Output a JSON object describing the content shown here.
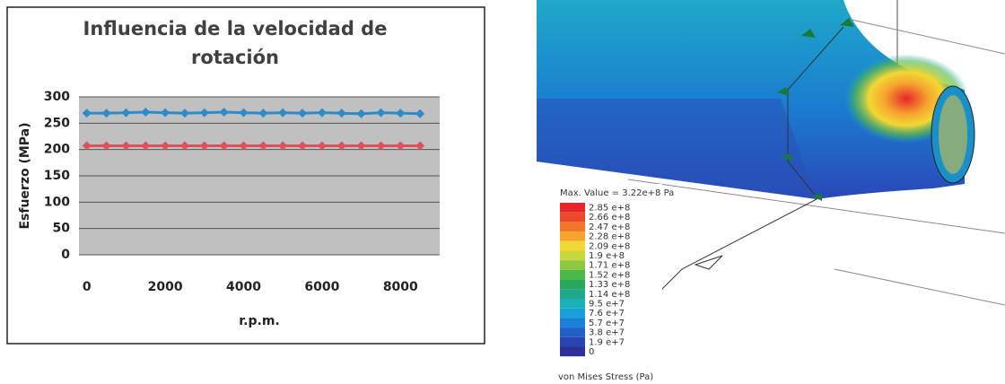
{
  "chart_data": {
    "type": "line",
    "title": "Influencia de la velocidad de rotación",
    "x_label": "r.p.m.",
    "y_label": "Esfuerzo (MPa)",
    "x": [
      0,
      500,
      1000,
      1500,
      2000,
      2500,
      3000,
      3500,
      4000,
      4500,
      5000,
      5500,
      6000,
      6500,
      7000,
      7500,
      8000,
      8500
    ],
    "series": [
      {
        "color": "#2e8bc9",
        "values": [
          269,
          269,
          270,
          271,
          270,
          269,
          270,
          271,
          270,
          269,
          270,
          269,
          270,
          269,
          268,
          270,
          269,
          268
        ]
      },
      {
        "color": "#e0505a",
        "values": [
          207,
          207,
          207,
          207,
          207,
          207,
          207,
          207,
          207,
          207,
          207,
          207,
          207,
          207,
          207,
          207,
          207,
          207
        ]
      }
    ],
    "xlim": [
      -200,
      9000
    ],
    "xticks": [
      0,
      2000,
      4000,
      6000,
      8000
    ],
    "ylim": [
      0,
      300
    ],
    "yticks": [
      0,
      50,
      100,
      150,
      200,
      250,
      300
    ],
    "grid": true
  },
  "fea_image": {
    "max_value": "Max. Value = 3.22e+8 Pa",
    "legend": [
      {
        "label": "2.85 e+8",
        "color": "#e8262a"
      },
      {
        "label": "2.66 e+8",
        "color": "#ee4a2a"
      },
      {
        "label": "2.47 e+8",
        "color": "#f2752c"
      },
      {
        "label": "2.28 e+8",
        "color": "#f5a52e"
      },
      {
        "label": "2.09 e+8",
        "color": "#f2d833"
      },
      {
        "label": "1.9 e+8",
        "color": "#c8d83a"
      },
      {
        "label": "1.71 e+8",
        "color": "#8cc840"
      },
      {
        "label": "1.52 e+8",
        "color": "#4cb848"
      },
      {
        "label": "1.33 e+8",
        "color": "#27a85a"
      },
      {
        "label": "1.14 e+8",
        "color": "#1fa98a"
      },
      {
        "label": "9.5 e+7",
        "color": "#1cb0b8"
      },
      {
        "label": "7.6 e+7",
        "color": "#1aa0d8"
      },
      {
        "label": "5.7 e+7",
        "color": "#1a80d8"
      },
      {
        "label": "3.8 e+7",
        "color": "#2260c8"
      },
      {
        "label": "1.9 e+7",
        "color": "#2a44b0"
      },
      {
        "label": "0",
        "color": "#2e3098"
      }
    ],
    "caption": "von Mises Stress (Pa)"
  }
}
